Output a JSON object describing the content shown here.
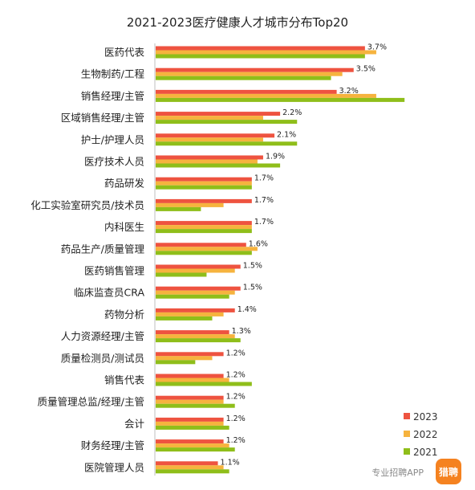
{
  "chart_data": {
    "type": "bar",
    "orientation": "horizontal",
    "title": "2021-2023医疗健康人才城市分布Top20",
    "categories": [
      "医药代表",
      "生物制药/工程",
      "销售经理/主管",
      "区域销售经理/主管",
      "护士/护理人员",
      "医疗技术人员",
      "药品研发",
      "化工实验室研究员/技术员",
      "内科医生",
      "药品生产/质量管理",
      "医药销售管理",
      "临床监查员CRA",
      "药物分析",
      "人力资源经理/主管",
      "质量检测员/测试员",
      "销售代表",
      "质量管理总监/经理/主管",
      "会计",
      "财务经理/主管",
      "医院管理人员"
    ],
    "series": [
      {
        "name": "2023",
        "color": "#ee5340",
        "values": [
          3.7,
          3.5,
          3.2,
          2.2,
          2.1,
          1.9,
          1.7,
          1.7,
          1.7,
          1.6,
          1.5,
          1.5,
          1.4,
          1.3,
          1.2,
          1.2,
          1.2,
          1.2,
          1.2,
          1.1
        ]
      },
      {
        "name": "2022",
        "color": "#f6b33e",
        "values": [
          3.9,
          3.3,
          3.9,
          1.9,
          1.9,
          1.8,
          1.7,
          1.2,
          1.7,
          1.8,
          1.4,
          1.4,
          1.2,
          1.4,
          1.0,
          1.3,
          1.2,
          1.2,
          1.3,
          1.2
        ]
      },
      {
        "name": "2021",
        "color": "#8fbe1a",
        "values": [
          3.7,
          3.1,
          4.4,
          2.5,
          2.5,
          2.2,
          1.7,
          0.8,
          1.7,
          1.7,
          0.9,
          1.3,
          1.0,
          1.5,
          0.7,
          1.7,
          1.4,
          1.3,
          1.4,
          1.3
        ]
      }
    ],
    "data_labels": [
      "3.7%",
      "3.5%",
      "3.2%",
      "2.2%",
      "2.1%",
      "1.9%",
      "1.7%",
      "1.7%",
      "1.7%",
      "1.6%",
      "1.5%",
      "1.5%",
      "1.4%",
      "1.3%",
      "1.2%",
      "1.2%",
      "1.2%",
      "1.2%",
      "1.2%",
      "1.1%"
    ],
    "xlim": [
      0,
      4.5
    ],
    "grid": false,
    "legend_position": "bottom-right"
  },
  "watermark": {
    "text": "专业招聘APP",
    "logo_text": "猎聘",
    "logo_color": "#f58220"
  }
}
